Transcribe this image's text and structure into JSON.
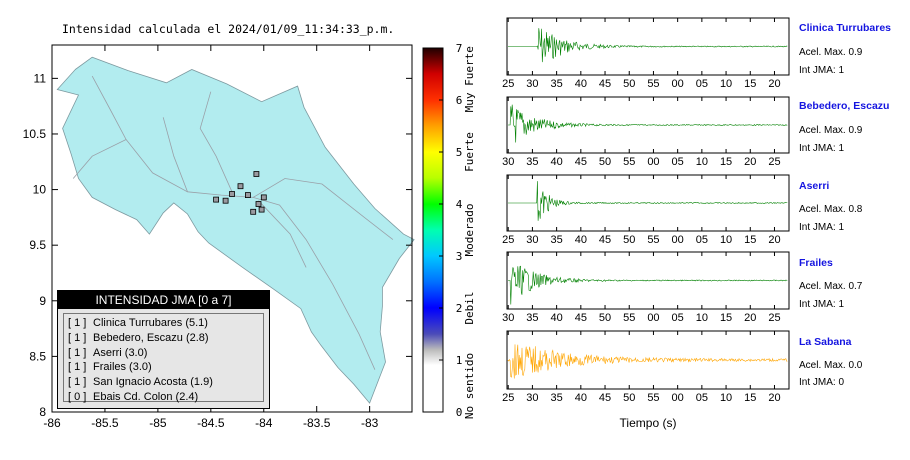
{
  "title": "Intensidad calculada el 2024/01/09_11:34:33_p.m.",
  "legend": {
    "title": "INTENSIDAD JMA [0 a 7]",
    "entries": [
      {
        "level": "[ 1 ]",
        "label": "Clinica Turrubares (5.1)"
      },
      {
        "level": "[ 1 ]",
        "label": "Bebedero, Escazu (2.8)"
      },
      {
        "level": "[ 1 ]",
        "label": "Aserri (3.0)"
      },
      {
        "level": "[ 1 ]",
        "label": "Frailes (3.0)"
      },
      {
        "level": "[ 1 ]",
        "label": "San Ignacio Acosta (1.9)"
      },
      {
        "level": "[ 0 ]",
        "label": "Ebais Cd. Colon (2.4)"
      }
    ]
  },
  "colorbar": {
    "ticks": [
      "0",
      "1",
      "2",
      "3",
      "4",
      "5",
      "6",
      "7"
    ],
    "range": [
      0,
      7
    ],
    "labels": [
      "No sentido",
      "Debil",
      "Moderado",
      "Fuerte",
      "Muy Fuerte"
    ]
  },
  "traces": {
    "xlabel": "Tiempo (s)",
    "acel_prefix": "Acel. Max.",
    "jma_prefix": "Int JMA:",
    "stations": [
      {
        "name": "Clinica Turrubares",
        "acel": "0.9",
        "jma": "1",
        "color": "#008000",
        "ticks": [
          "25",
          "30",
          "35",
          "40",
          "45",
          "50",
          "55",
          "00",
          "05",
          "10",
          "15",
          "20"
        ],
        "onset_index": 1,
        "decay": "slow"
      },
      {
        "name": "Bebedero, Escazu",
        "acel": "0.9",
        "jma": "1",
        "color": "#008000",
        "ticks": [
          "30",
          "35",
          "40",
          "45",
          "50",
          "55",
          "00",
          "05",
          "10",
          "15",
          "20",
          "25"
        ],
        "onset_index": 0,
        "decay": "slow"
      },
      {
        "name": "Aserri",
        "acel": "0.8",
        "jma": "1",
        "color": "#008000",
        "ticks": [
          "25",
          "30",
          "35",
          "40",
          "45",
          "50",
          "55",
          "00",
          "05",
          "10",
          "15",
          "20"
        ],
        "onset_index": 1,
        "decay": "fast"
      },
      {
        "name": "Frailes",
        "acel": "0.7",
        "jma": "1",
        "color": "#008000",
        "ticks": [
          "30",
          "35",
          "40",
          "45",
          "50",
          "55",
          "00",
          "05",
          "10",
          "15",
          "20",
          "25"
        ],
        "onset_index": 0,
        "decay": "slow"
      },
      {
        "name": "La Sabana",
        "acel": "0.0",
        "jma": "0",
        "color": "#ffa500",
        "ticks": [
          "25",
          "30",
          "35",
          "40",
          "45",
          "50",
          "55",
          "00",
          "05",
          "10",
          "15",
          "20"
        ],
        "onset_index": 0,
        "decay": "noise"
      }
    ]
  },
  "chart_data": [
    {
      "type": "scatter",
      "xlim": [
        -86,
        -82.6
      ],
      "ylim": [
        8,
        11.3
      ],
      "xticks": [
        "-86",
        "-85.5",
        "-85",
        "-84.5",
        "-84",
        "-83.5",
        "-83"
      ],
      "yticks": [
        "8",
        "8.5",
        "9",
        "9.5",
        "10",
        "10.5",
        "11"
      ],
      "stations": [
        {
          "x": -84.07,
          "y": 10.14
        },
        {
          "x": -84.22,
          "y": 10.03
        },
        {
          "x": -84.3,
          "y": 9.96
        },
        {
          "x": -84.36,
          "y": 9.9
        },
        {
          "x": -84.15,
          "y": 9.95
        },
        {
          "x": -84.05,
          "y": 9.87
        },
        {
          "x": -84.02,
          "y": 9.82
        },
        {
          "x": -84.1,
          "y": 9.8
        },
        {
          "x": -84.45,
          "y": 9.91
        },
        {
          "x": -84.0,
          "y": 9.93
        }
      ]
    }
  ]
}
